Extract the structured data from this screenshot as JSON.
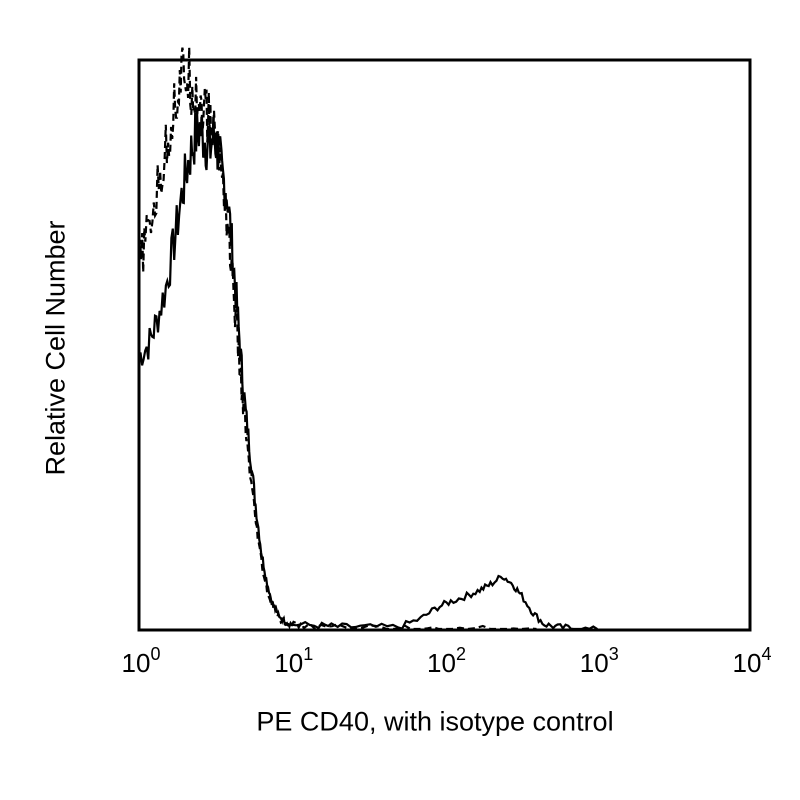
{
  "chart_data": {
    "type": "area",
    "title": "",
    "xlabel": "PE CD40, with isotype control",
    "ylabel": "Relative Cell Number",
    "x_scale": "log",
    "xlim": [
      1,
      10000
    ],
    "ylim": [
      0,
      100
    ],
    "grid": false,
    "x_ticks": [
      {
        "base": "10",
        "exp": "0",
        "value": 1
      },
      {
        "base": "10",
        "exp": "1",
        "value": 10
      },
      {
        "base": "10",
        "exp": "2",
        "value": 100
      },
      {
        "base": "10",
        "exp": "3",
        "value": 1000
      },
      {
        "base": "10",
        "exp": "4",
        "value": 10000
      }
    ],
    "series": [
      {
        "style": "solid",
        "color": "#000000",
        "points": [
          [
            1.0,
            48
          ],
          [
            1.15,
            50
          ],
          [
            1.3,
            54
          ],
          [
            1.5,
            60
          ],
          [
            1.7,
            68
          ],
          [
            1.9,
            76
          ],
          [
            2.1,
            82
          ],
          [
            2.3,
            86
          ],
          [
            2.5,
            88
          ],
          [
            2.7,
            86
          ],
          [
            2.9,
            84
          ],
          [
            3.1,
            87
          ],
          [
            3.3,
            84
          ],
          [
            3.5,
            80
          ],
          [
            3.8,
            76
          ],
          [
            4.1,
            66
          ],
          [
            4.4,
            56
          ],
          [
            4.7,
            46
          ],
          [
            5.0,
            38
          ],
          [
            5.4,
            30
          ],
          [
            5.8,
            22
          ],
          [
            6.3,
            14
          ],
          [
            6.8,
            9
          ],
          [
            7.4,
            5
          ],
          [
            8.0,
            3
          ],
          [
            9.0,
            1.5
          ],
          [
            10,
            1
          ],
          [
            15,
            0.8
          ],
          [
            20,
            0.6
          ],
          [
            30,
            0.5
          ],
          [
            50,
            0.5
          ],
          [
            70,
            2
          ],
          [
            90,
            4
          ],
          [
            110,
            5
          ],
          [
            140,
            6
          ],
          [
            170,
            7
          ],
          [
            200,
            8
          ],
          [
            240,
            9.5
          ],
          [
            280,
            8
          ],
          [
            320,
            6
          ],
          [
            380,
            3
          ],
          [
            450,
            1
          ],
          [
            550,
            0.5
          ],
          [
            700,
            0.3
          ],
          [
            1000,
            0
          ]
        ]
      },
      {
        "style": "dashed",
        "color": "#000000",
        "points": [
          [
            1.0,
            64
          ],
          [
            1.1,
            68
          ],
          [
            1.25,
            74
          ],
          [
            1.4,
            80
          ],
          [
            1.55,
            86
          ],
          [
            1.7,
            92
          ],
          [
            1.85,
            96
          ],
          [
            2.0,
            98
          ],
          [
            2.2,
            96
          ],
          [
            2.4,
            94
          ],
          [
            2.6,
            92
          ],
          [
            2.8,
            90
          ],
          [
            3.0,
            88
          ],
          [
            3.3,
            85
          ],
          [
            3.6,
            78
          ],
          [
            3.9,
            68
          ],
          [
            4.2,
            58
          ],
          [
            4.5,
            48
          ],
          [
            4.8,
            40
          ],
          [
            5.1,
            32
          ],
          [
            5.5,
            24
          ],
          [
            6.0,
            16
          ],
          [
            6.5,
            10
          ],
          [
            7.0,
            6
          ],
          [
            7.6,
            4
          ],
          [
            8.3,
            2
          ],
          [
            9.5,
            1
          ],
          [
            12,
            0.7
          ],
          [
            20,
            0.5
          ],
          [
            35,
            0.4
          ],
          [
            60,
            0.3
          ],
          [
            100,
            0.2
          ],
          [
            200,
            0.1
          ],
          [
            400,
            0
          ]
        ]
      }
    ]
  }
}
